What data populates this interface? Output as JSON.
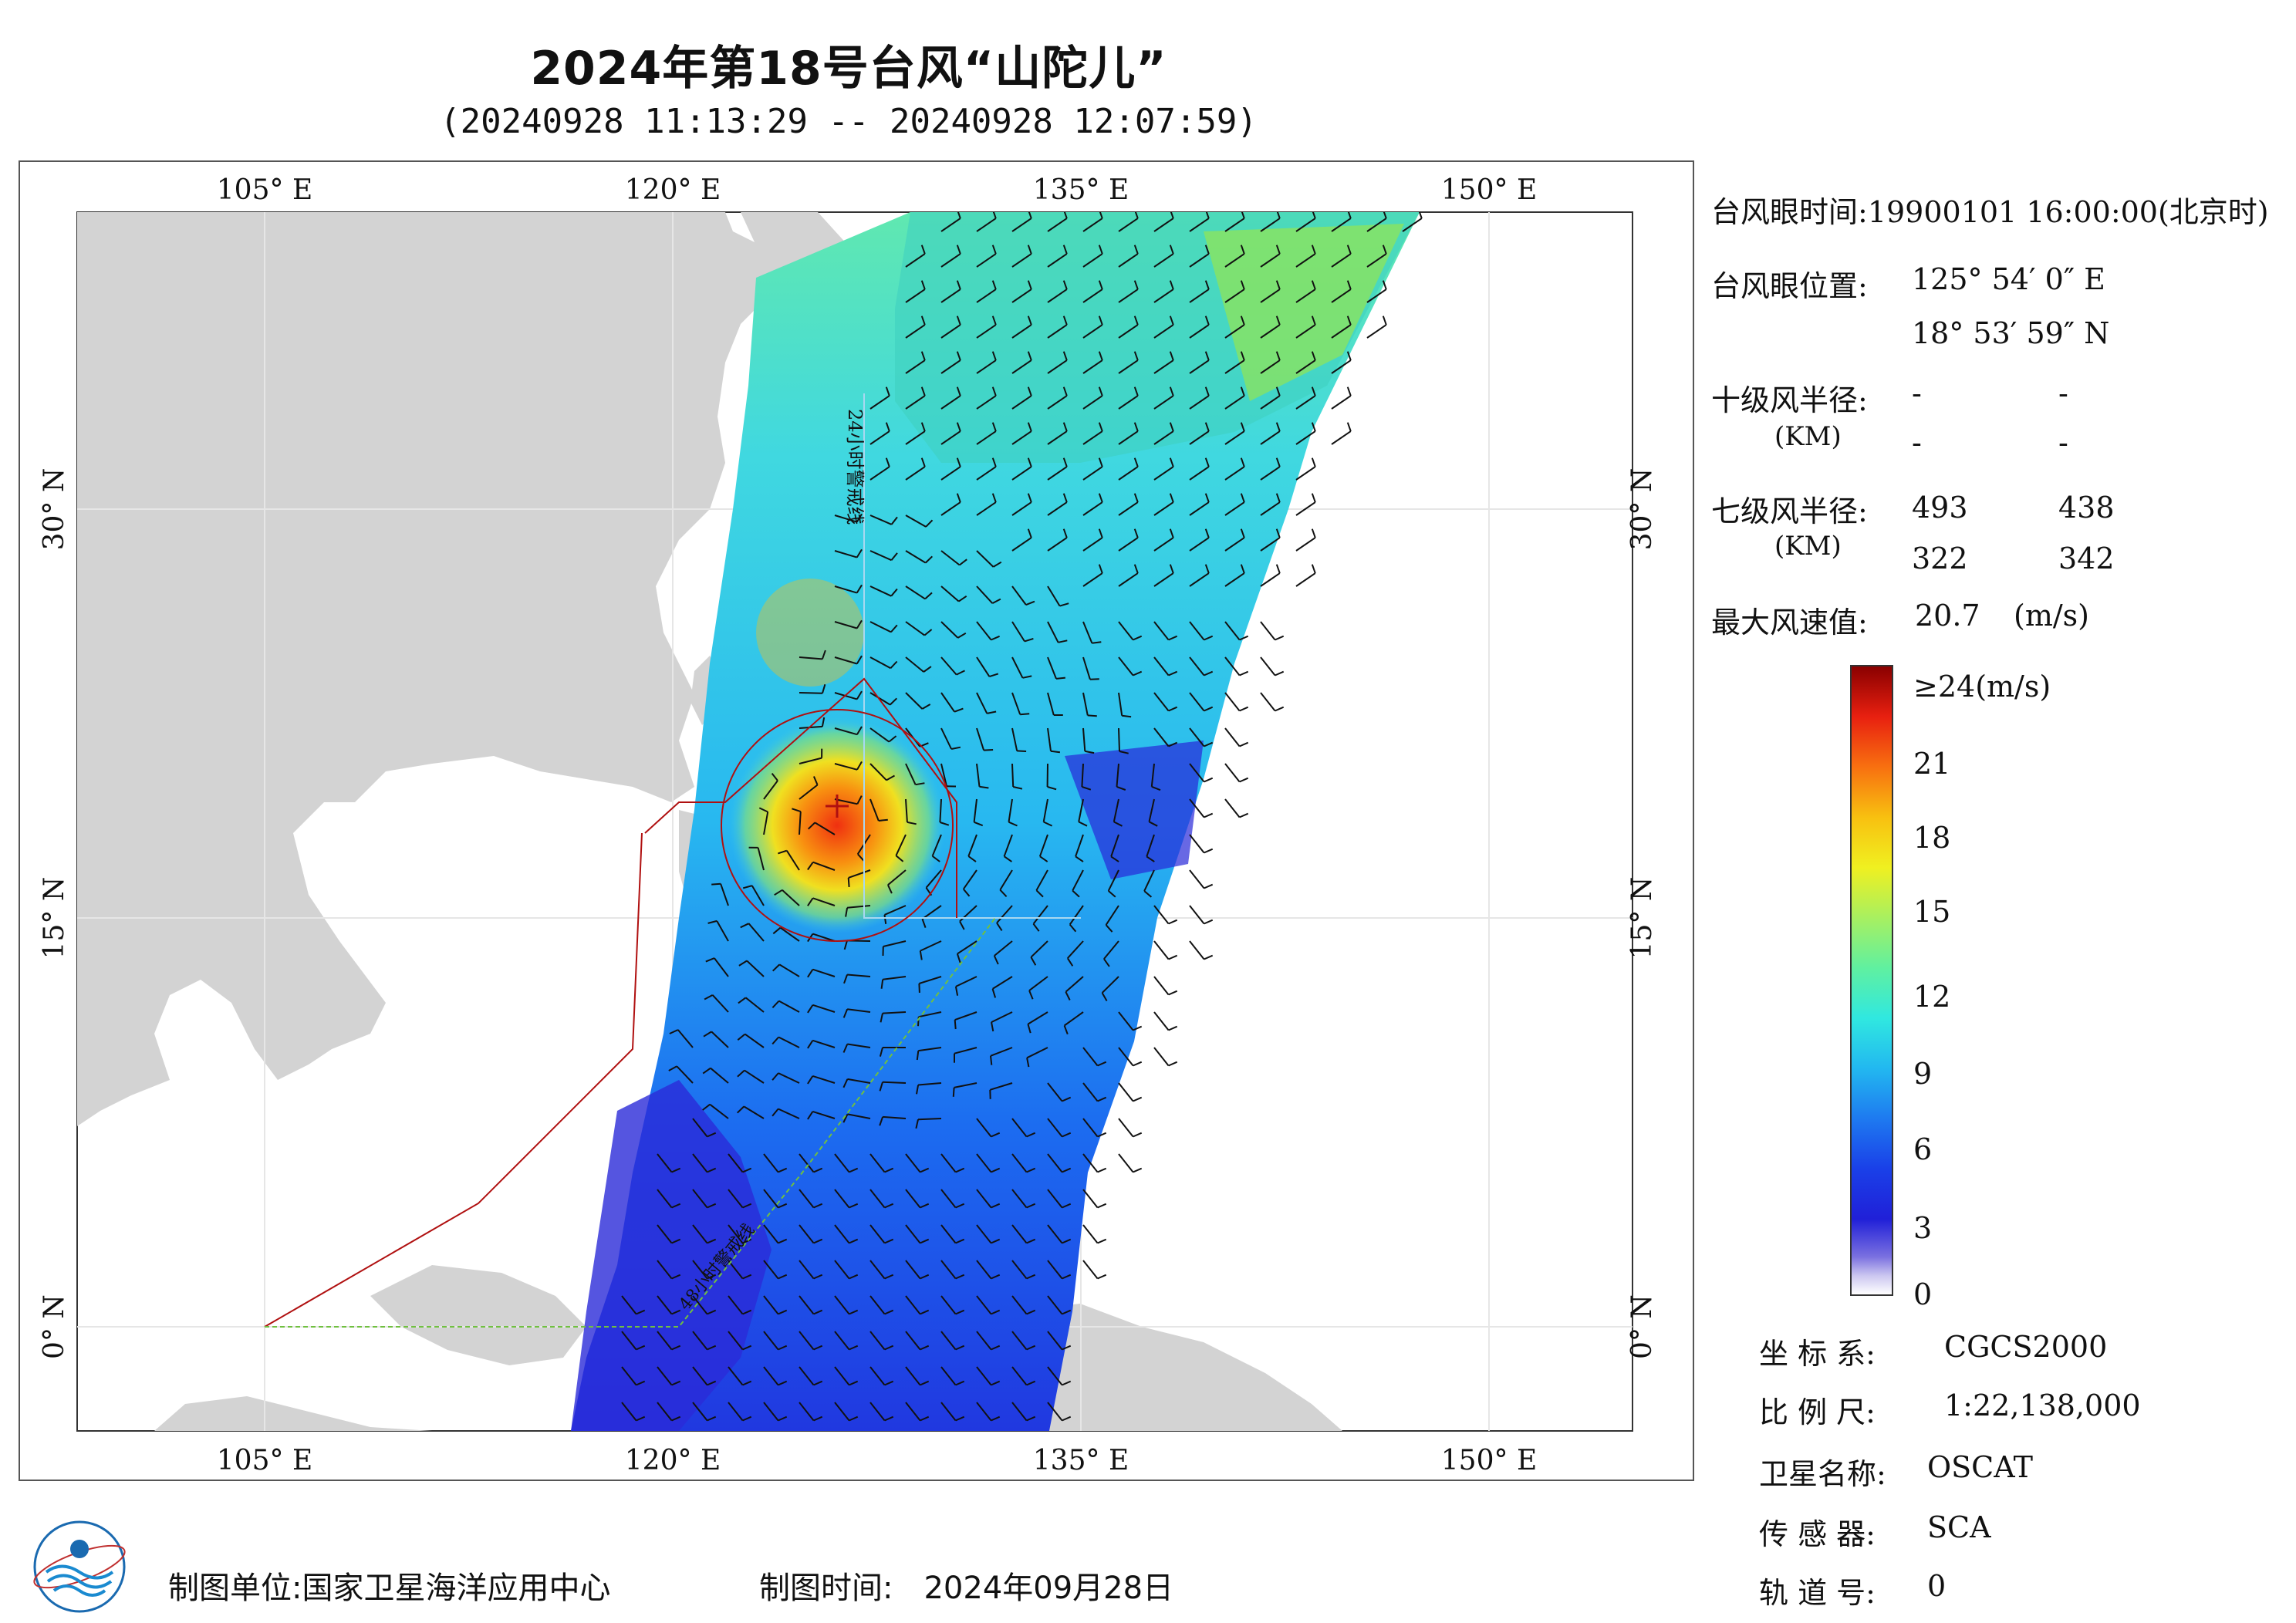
{
  "title": "2024年第18号台风“山陀儿”",
  "subtitle": "(20240928 11:13:29 -- 20240928 12:07:59)",
  "map": {
    "lon_ticks_top": [
      "105° E",
      "120° E",
      "135° E",
      "150° E"
    ],
    "lon_ticks_bottom": [
      "105° E",
      "120° E",
      "135° E",
      "150° E"
    ],
    "lat_ticks_left": [
      "30° N",
      "15° N",
      "0° N"
    ],
    "lat_ticks_right": [
      "30° N",
      "15° N",
      "0° N"
    ],
    "warning_line_24h": "24小时警戒线",
    "warning_line_48h": "48小时警戒线",
    "colors": {
      "land": "#d3d3d3",
      "ocean": "#ffffff",
      "warning_red": "#b01010",
      "warning_green": "#70c040"
    }
  },
  "info": {
    "eye_time_label": "台风眼时间:",
    "eye_time_value": "19900101 16:00:00(北京时)",
    "eye_pos_label": "台风眼位置:",
    "eye_lon": "125° 54′ 0″ E",
    "eye_lat": "18° 53′ 59″ N",
    "r10_label": "十级风半径:",
    "r10_unit": "(KM)",
    "r10_values": [
      "-",
      "-",
      "-",
      "-"
    ],
    "r7_label": "七级风半径:",
    "r7_unit": "(KM)",
    "r7_values": [
      "493",
      "438",
      "322",
      "342"
    ],
    "max_wind_label": "最大风速值:",
    "max_wind_value": "20.7",
    "max_wind_unit": "(m/s)"
  },
  "legend": {
    "labels": [
      "≥24(m/s)",
      "21",
      "18",
      "15",
      "12",
      "9",
      "6",
      "3",
      "0"
    ],
    "max": 24,
    "min": 0
  },
  "meta": {
    "crs_label": "坐 标 系:",
    "crs_value": "CGCS2000",
    "scale_label": "比 例 尺:",
    "scale_value": "1:22,138,000",
    "satellite_label": "卫星名称:",
    "satellite_value": "OSCAT",
    "sensor_label": "传 感 器:",
    "sensor_value": "SCA",
    "orbit_label": "轨 道 号:",
    "orbit_value": "0"
  },
  "footer": {
    "unit_label": "制图单位:",
    "unit_value": "国家卫星海洋应用中心",
    "time_label": "制图时间:",
    "time_value": "2024年09月28日"
  }
}
